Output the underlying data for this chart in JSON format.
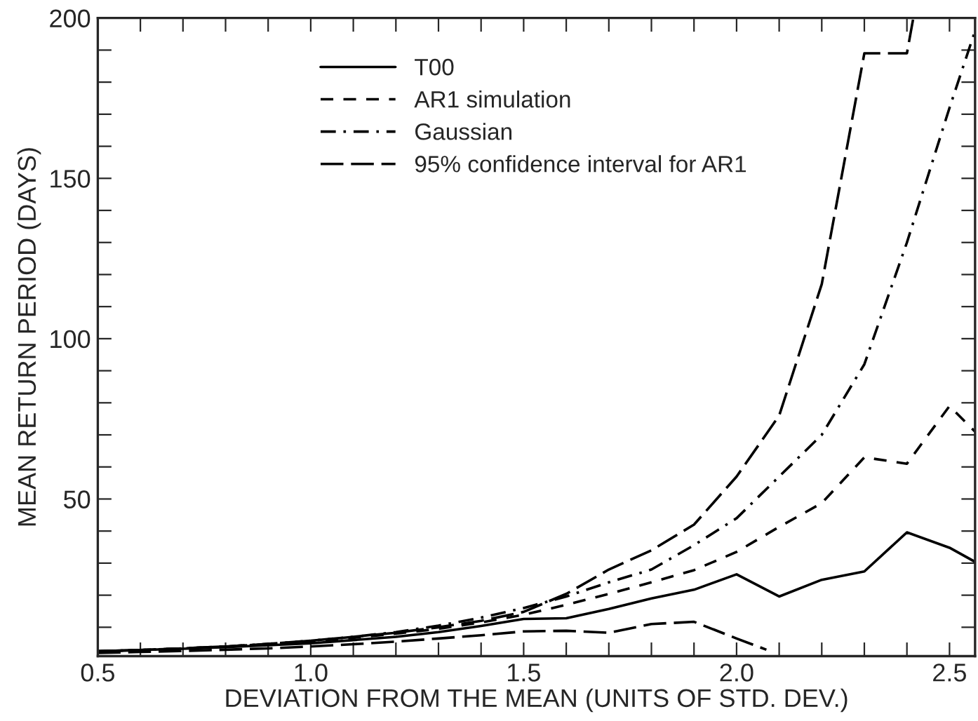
{
  "chart_data": {
    "type": "line",
    "xlabel": "DEVIATION FROM THE MEAN (UNITS OF STD. DEV.)",
    "ylabel": "MEAN RETURN PERIOD (DAYS)",
    "xlim": [
      0.5,
      2.56
    ],
    "ylim": [
      1,
      200
    ],
    "xticks": [
      {
        "value": 0.5,
        "label": "0.5"
      },
      {
        "value": 0.6,
        "label": null
      },
      {
        "value": 0.7,
        "label": null
      },
      {
        "value": 0.8,
        "label": null
      },
      {
        "value": 0.9,
        "label": null
      },
      {
        "value": 1.0,
        "label": "1.0"
      },
      {
        "value": 1.1,
        "label": null
      },
      {
        "value": 1.2,
        "label": null
      },
      {
        "value": 1.3,
        "label": null
      },
      {
        "value": 1.4,
        "label": null
      },
      {
        "value": 1.5,
        "label": "1.5"
      },
      {
        "value": 1.6,
        "label": null
      },
      {
        "value": 1.7,
        "label": null
      },
      {
        "value": 1.8,
        "label": null
      },
      {
        "value": 1.9,
        "label": null
      },
      {
        "value": 2.0,
        "label": "2.0"
      },
      {
        "value": 2.1,
        "label": null
      },
      {
        "value": 2.2,
        "label": null
      },
      {
        "value": 2.3,
        "label": null
      },
      {
        "value": 2.4,
        "label": null
      },
      {
        "value": 2.5,
        "label": "2.5"
      }
    ],
    "yticks": [
      {
        "value": 10,
        "label": null
      },
      {
        "value": 20,
        "label": null
      },
      {
        "value": 30,
        "label": null
      },
      {
        "value": 40,
        "label": null
      },
      50,
      {
        "value": 60,
        "label": null
      },
      {
        "value": 70,
        "label": null
      },
      {
        "value": 80,
        "label": null
      },
      {
        "value": 90,
        "label": null
      },
      100,
      {
        "value": 110,
        "label": null
      },
      {
        "value": 120,
        "label": null
      },
      {
        "value": 130,
        "label": null
      },
      {
        "value": 140,
        "label": null
      },
      150,
      {
        "value": 160,
        "label": null
      },
      {
        "value": 170,
        "label": null
      },
      {
        "value": 180,
        "label": null
      },
      {
        "value": 190,
        "label": null
      },
      200
    ],
    "legend": "top",
    "grid": false,
    "marker": "none",
    "series": [
      {
        "name": "T00",
        "color": "#000000",
        "line_style": "solid",
        "x": [
          0.5,
          0.6,
          0.7,
          0.8,
          0.9,
          1.0,
          1.1,
          1.2,
          1.3,
          1.4,
          1.5,
          1.6,
          1.7,
          1.8,
          1.9,
          2.0,
          2.1,
          2.2,
          2.3,
          2.4,
          2.5,
          2.56
        ],
        "values": [
          2.5,
          2.9,
          3.3,
          3.8,
          4.4,
          5,
          6,
          7,
          8.5,
          10.4,
          12.6,
          12.8,
          15.7,
          19,
          21.7,
          26.5,
          19.6,
          24.8,
          27.4,
          39.6,
          34.8,
          30.4
        ]
      },
      {
        "name": "AR1 simulation",
        "color": "#000000",
        "line_style": "dashed",
        "x": [
          0.5,
          0.6,
          0.7,
          0.8,
          0.9,
          1.0,
          1.1,
          1.2,
          1.3,
          1.4,
          1.5,
          1.6,
          1.7,
          1.8,
          1.9,
          2.0,
          2.1,
          2.2,
          2.3,
          2.4,
          2.5,
          2.56
        ],
        "values": [
          2.5,
          2.9,
          3.4,
          4,
          4.7,
          5.6,
          6.7,
          8,
          9.5,
          11.5,
          13.9,
          17,
          20.4,
          24,
          27.8,
          33.5,
          41.3,
          48.7,
          63,
          61,
          79,
          71
        ]
      },
      {
        "name": "Gaussian",
        "color": "#000000",
        "line_style": "dashdot",
        "x": [
          0.5,
          0.6,
          0.7,
          0.8,
          0.9,
          1.0,
          1.1,
          1.2,
          1.3,
          1.4,
          1.5,
          1.6,
          1.7,
          1.8,
          1.9,
          2.0,
          2.1,
          2.2,
          2.3,
          2.4,
          2.5,
          2.56
        ],
        "values": [
          2.5,
          2.9,
          3.4,
          4,
          4.8,
          5.8,
          7,
          8.5,
          10.5,
          13,
          16,
          19.6,
          24,
          28,
          35.6,
          44,
          57,
          70,
          92,
          130,
          172,
          196
        ]
      },
      {
        "name": "95% confidence interval for AR1",
        "color": "#000000",
        "line_style": "longdash",
        "x": [
          0.5,
          0.6,
          0.7,
          0.8,
          0.9,
          1.0,
          1.1,
          1.2,
          1.3,
          1.4,
          1.5,
          1.6,
          1.7,
          1.8,
          1.9,
          2.0,
          2.1,
          2.2,
          2.3,
          2.4,
          2.415
        ],
        "values": [
          2.5,
          2.9,
          3.4,
          4,
          4.8,
          5.8,
          7,
          8.3,
          10,
          12,
          14.8,
          20.4,
          28,
          34,
          42,
          57,
          76,
          117,
          189,
          189,
          200
        ]
      },
      {
        "color": "#000000",
        "line_style": "longdash",
        "x": [
          0.5,
          0.6,
          0.7,
          0.8,
          0.9,
          1.0,
          1.1,
          1.2,
          1.3,
          1.4,
          1.5,
          1.6,
          1.7,
          1.8,
          1.9,
          2.0,
          2.07
        ],
        "values": [
          2,
          2.3,
          2.6,
          3,
          3.4,
          4,
          4.7,
          5.5,
          6.5,
          7.5,
          8.7,
          8.9,
          8.3,
          11,
          11.7,
          6.5,
          3
        ]
      }
    ]
  }
}
